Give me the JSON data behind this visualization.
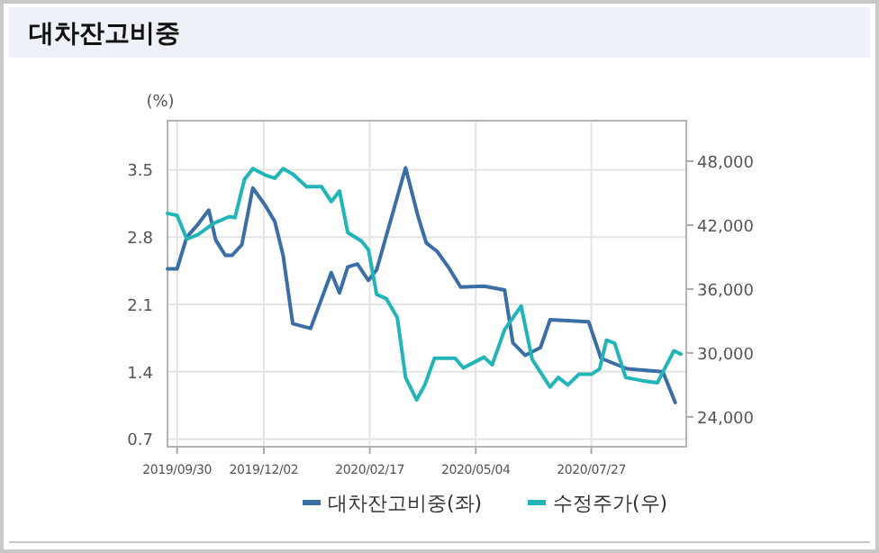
{
  "chart_data": {
    "type": "line",
    "title": "대차잔고비중",
    "ylabel": "(%)",
    "xlim": [
      "2019-09-23",
      "2020-10-04"
    ],
    "xticks": [
      {
        "value": "2019-09-30",
        "label": "2019/09/30"
      },
      {
        "value": "2019-12-02",
        "label": "2019/12/02"
      },
      {
        "value": "2020-02-17",
        "label": "2020/02/17"
      },
      {
        "value": "2020-05-04",
        "label": "2020/05/04"
      },
      {
        "value": "2020-07-27",
        "label": "2020/07/27"
      }
    ],
    "ylim": [
      0.62,
      4.01
    ],
    "yticks": [
      0.7,
      1.4,
      2.1,
      2.8,
      3.5
    ],
    "y2lim": [
      21200,
      51800
    ],
    "y2ticks": [
      {
        "value": 24000,
        "label": "24,000"
      },
      {
        "value": 30000,
        "label": "30,000"
      },
      {
        "value": 36000,
        "label": "36,000"
      },
      {
        "value": 42000,
        "label": "42,000"
      },
      {
        "value": 48000,
        "label": "48,000"
      }
    ],
    "grid": true,
    "legend": "bottom",
    "series": [
      {
        "name": "대차잔고비중(좌)",
        "color": "#3a6ea5",
        "x": [
          "2019-09-23",
          "2019-09-30",
          "2019-10-07",
          "2019-10-15",
          "2019-10-23",
          "2019-10-28",
          "2019-11-04",
          "2019-11-09",
          "2019-11-16",
          "2019-11-24",
          "2019-12-03",
          "2019-12-10",
          "2019-12-16",
          "2019-12-23",
          "2020-01-05",
          "2020-01-20",
          "2020-01-26",
          "2020-02-01",
          "2020-02-08",
          "2020-02-16",
          "2020-02-22",
          "2020-03-14",
          "2020-03-23",
          "2020-03-29",
          "2020-04-06",
          "2020-04-14",
          "2020-04-23",
          "2020-05-10",
          "2020-05-25",
          "2020-05-31",
          "2020-06-09",
          "2020-06-20",
          "2020-06-27",
          "2020-07-25",
          "2020-08-03",
          "2020-08-22",
          "2020-09-17",
          "2020-09-26"
        ],
        "values": [
          2.47,
          2.47,
          2.8,
          2.93,
          3.08,
          2.77,
          2.61,
          2.61,
          2.72,
          3.31,
          3.13,
          2.96,
          2.61,
          1.9,
          1.85,
          2.43,
          2.22,
          2.49,
          2.52,
          2.35,
          2.46,
          3.52,
          3.02,
          2.74,
          2.65,
          2.49,
          2.28,
          2.29,
          2.25,
          1.7,
          1.57,
          1.65,
          1.94,
          1.92,
          1.54,
          1.43,
          1.4,
          1.08
        ]
      },
      {
        "name": "수정주가(우)",
        "color": "#22b5b8",
        "axis": "y2",
        "x": [
          "2019-09-23",
          "2019-09-30",
          "2019-10-07",
          "2019-10-15",
          "2019-10-27",
          "2019-11-07",
          "2019-11-11",
          "2019-11-18",
          "2019-11-24",
          "2019-12-03",
          "2019-12-10",
          "2019-12-16",
          "2019-12-23",
          "2020-01-02",
          "2020-01-13",
          "2020-01-20",
          "2020-01-26",
          "2020-02-01",
          "2020-02-11",
          "2020-02-16",
          "2020-02-22",
          "2020-02-29",
          "2020-03-08",
          "2020-03-14",
          "2020-03-22",
          "2020-03-28",
          "2020-04-04",
          "2020-04-19",
          "2020-04-25",
          "2020-05-10",
          "2020-05-16",
          "2020-05-25",
          "2020-06-06",
          "2020-06-14",
          "2020-06-20",
          "2020-06-27",
          "2020-07-03",
          "2020-07-10",
          "2020-07-18",
          "2020-07-27",
          "2020-08-02",
          "2020-08-07",
          "2020-08-13",
          "2020-08-21",
          "2020-09-02",
          "2020-09-13",
          "2020-09-17",
          "2020-09-25",
          "2020-09-30"
        ],
        "values": [
          43100,
          42900,
          40700,
          41100,
          42200,
          42800,
          42700,
          46300,
          47300,
          46700,
          46400,
          47300,
          46800,
          45600,
          45600,
          44200,
          45200,
          41300,
          40500,
          39700,
          35500,
          35100,
          33300,
          27700,
          25600,
          27000,
          29500,
          29500,
          28600,
          29600,
          28900,
          32200,
          34400,
          29400,
          28200,
          26800,
          27700,
          27000,
          28000,
          28000,
          28500,
          31200,
          30900,
          27700,
          27400,
          27200,
          28200,
          30200,
          29900
        ]
      }
    ]
  }
}
